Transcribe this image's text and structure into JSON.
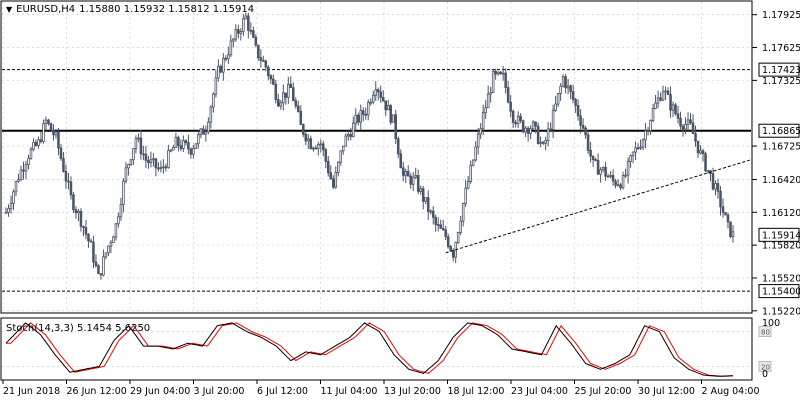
{
  "header": {
    "arrow_glyph": "▼",
    "symbol": "EURUSD,H4",
    "ohlc": "1.15880 1.15932 1.15812 1.15914"
  },
  "price_axis": {
    "ticks": [
      "1.17925",
      "1.17625",
      "1.17325",
      "1.16725",
      "1.16420",
      "1.16120",
      "1.15820",
      "1.15520",
      "1.15220"
    ],
    "labeled_levels": [
      {
        "label": "1.17423",
        "value": 1.17423,
        "style": "dotted"
      },
      {
        "label": "1.16865",
        "value": 1.16865,
        "style": "solid"
      },
      {
        "label": "1.15914",
        "value": 1.15914,
        "style": "current"
      },
      {
        "label": "1.15400",
        "value": 1.154,
        "style": "dotted"
      }
    ]
  },
  "time_axis": {
    "labels": [
      "21 Jun 2018",
      "26 Jun 12:00",
      "29 Jun 04:00",
      "3 Jul 20:00",
      "6 Jul 12:00",
      "11 Jul 04:00",
      "13 Jul 20:00",
      "18 Jul 12:00",
      "23 Jul 04:00",
      "25 Jul 20:00",
      "30 Jul 12:00",
      "2 Aug 04:00"
    ]
  },
  "stochastic": {
    "label": "Stoch(14,3,3) 5.1454 5.6250",
    "axis_ticks": [
      "100",
      "80",
      "20",
      "0"
    ],
    "main_line_color": "#000000",
    "signal_line_color": "#ff0000"
  },
  "colors": {
    "candle_body": "#4a5568",
    "background": "#ffffff",
    "grid": "#c8c8c8",
    "resistance_line": "#000000"
  },
  "chart_data": {
    "type": "candlestick",
    "symbol": "EURUSD",
    "timeframe": "H4",
    "ylim": [
      1.152,
      1.1805
    ],
    "close_anchors": [
      [
        0,
        1.1612
      ],
      [
        5,
        1.1645
      ],
      [
        9,
        1.1665
      ],
      [
        13,
        1.1675
      ],
      [
        16,
        1.1695
      ],
      [
        20,
        1.168
      ],
      [
        26,
        1.1625
      ],
      [
        30,
        1.1605
      ],
      [
        34,
        1.158
      ],
      [
        37,
        1.1552
      ],
      [
        40,
        1.1575
      ],
      [
        44,
        1.16
      ],
      [
        48,
        1.165
      ],
      [
        52,
        1.168
      ],
      [
        56,
        1.166
      ],
      [
        62,
        1.165
      ],
      [
        68,
        1.1675
      ],
      [
        74,
        1.167
      ],
      [
        80,
        1.169
      ],
      [
        85,
        1.174
      ],
      [
        90,
        1.1765
      ],
      [
        96,
        1.179
      ],
      [
        100,
        1.176
      ],
      [
        104,
        1.1745
      ],
      [
        109,
        1.1715
      ],
      [
        114,
        1.1725
      ],
      [
        118,
        1.169
      ],
      [
        122,
        1.1675
      ],
      [
        126,
        1.1675
      ],
      [
        131,
        1.1635
      ],
      [
        135,
        1.1675
      ],
      [
        140,
        1.1695
      ],
      [
        144,
        1.1705
      ],
      [
        148,
        1.173
      ],
      [
        151,
        1.1715
      ],
      [
        155,
        1.1695
      ],
      [
        159,
        1.1645
      ],
      [
        164,
        1.164
      ],
      [
        168,
        1.162
      ],
      [
        172,
        1.16
      ],
      [
        176,
        1.159
      ],
      [
        179,
        1.1575
      ],
      [
        183,
        1.162
      ],
      [
        187,
        1.166
      ],
      [
        191,
        1.17
      ],
      [
        195,
        1.1735
      ],
      [
        199,
        1.1735
      ],
      [
        203,
        1.17
      ],
      [
        207,
        1.169
      ],
      [
        211,
        1.169
      ],
      [
        215,
        1.167
      ],
      [
        219,
        1.17
      ],
      [
        223,
        1.1735
      ],
      [
        227,
        1.1715
      ],
      [
        231,
        1.169
      ],
      [
        235,
        1.1655
      ],
      [
        239,
        1.165
      ],
      [
        243,
        1.164
      ],
      [
        247,
        1.164
      ],
      [
        251,
        1.1665
      ],
      [
        255,
        1.168
      ],
      [
        259,
        1.1705
      ],
      [
        263,
        1.1725
      ],
      [
        266,
        1.171
      ],
      [
        270,
        1.1695
      ],
      [
        274,
        1.169
      ],
      [
        278,
        1.1665
      ],
      [
        282,
        1.1645
      ],
      [
        286,
        1.162
      ],
      [
        289,
        1.1598
      ],
      [
        291,
        1.1591
      ]
    ],
    "trendline": {
      "from": [
        176,
        1.1575
      ],
      "to": [
        301,
        1.166
      ],
      "style": "dashed"
    },
    "stoch_anchors": [
      [
        0,
        60
      ],
      [
        8,
        95
      ],
      [
        14,
        75
      ],
      [
        20,
        40
      ],
      [
        26,
        10
      ],
      [
        32,
        15
      ],
      [
        38,
        20
      ],
      [
        44,
        65
      ],
      [
        50,
        90
      ],
      [
        56,
        55
      ],
      [
        62,
        55
      ],
      [
        68,
        50
      ],
      [
        74,
        60
      ],
      [
        80,
        55
      ],
      [
        86,
        90
      ],
      [
        92,
        95
      ],
      [
        98,
        80
      ],
      [
        104,
        70
      ],
      [
        110,
        55
      ],
      [
        116,
        30
      ],
      [
        122,
        45
      ],
      [
        128,
        40
      ],
      [
        134,
        55
      ],
      [
        140,
        70
      ],
      [
        146,
        95
      ],
      [
        152,
        80
      ],
      [
        158,
        40
      ],
      [
        164,
        15
      ],
      [
        170,
        8
      ],
      [
        176,
        30
      ],
      [
        182,
        70
      ],
      [
        188,
        95
      ],
      [
        194,
        90
      ],
      [
        200,
        75
      ],
      [
        206,
        50
      ],
      [
        212,
        45
      ],
      [
        218,
        40
      ],
      [
        224,
        90
      ],
      [
        230,
        60
      ],
      [
        236,
        25
      ],
      [
        242,
        15
      ],
      [
        248,
        25
      ],
      [
        254,
        40
      ],
      [
        260,
        90
      ],
      [
        266,
        80
      ],
      [
        272,
        35
      ],
      [
        278,
        15
      ],
      [
        284,
        5
      ],
      [
        290,
        3
      ],
      [
        296,
        4
      ]
    ]
  }
}
